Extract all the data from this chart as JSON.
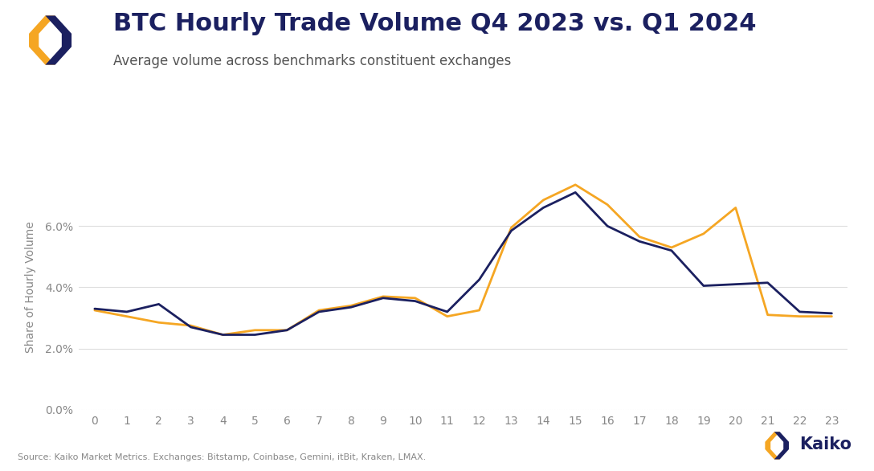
{
  "title": "BTC Hourly Trade Volume Q4 2023 vs. Q1 2024",
  "subtitle": "Average volume across benchmarks constituent exchanges",
  "ylabel": "Share of Hourly Volume",
  "hours": [
    0,
    1,
    2,
    3,
    4,
    5,
    6,
    7,
    8,
    9,
    10,
    11,
    12,
    13,
    14,
    15,
    16,
    17,
    18,
    19,
    20,
    21,
    22,
    23
  ],
  "q4_2023": [
    3.3,
    3.2,
    3.45,
    2.7,
    2.45,
    2.45,
    2.6,
    3.2,
    3.35,
    3.65,
    3.55,
    3.2,
    4.25,
    5.85,
    6.6,
    7.1,
    6.0,
    5.5,
    5.2,
    4.05,
    4.1,
    4.15,
    3.2,
    3.15
  ],
  "q1_2024": [
    3.25,
    3.05,
    2.85,
    2.75,
    2.45,
    2.6,
    2.6,
    3.25,
    3.4,
    3.7,
    3.65,
    3.05,
    3.25,
    5.95,
    6.85,
    7.35,
    6.7,
    5.65,
    5.3,
    5.75,
    6.6,
    3.1,
    3.05,
    3.05
  ],
  "q4_color": "#1b2060",
  "q1_color": "#f5a623",
  "ylim": [
    0,
    8.0
  ],
  "yticks": [
    0.0,
    2.0,
    4.0,
    6.0
  ],
  "ytick_labels": [
    "0.0%",
    "2.0%",
    "4.0%",
    "6.0%"
  ],
  "background_color": "#ffffff",
  "source_text": "Source: Kaiko Market Metrics. Exchanges: Bitstamp, Coinbase, Gemini, itBit, Kraken, LMAX.",
  "title_fontsize": 22,
  "subtitle_fontsize": 12,
  "axis_label_fontsize": 10,
  "tick_fontsize": 10,
  "line_width": 2.0,
  "logo_orange": "#f5a623",
  "logo_dark": "#1b2060",
  "kaiko_text_color": "#1b2060",
  "source_text_color": "#888888",
  "grid_color": "#dddddd",
  "tick_color": "#888888"
}
